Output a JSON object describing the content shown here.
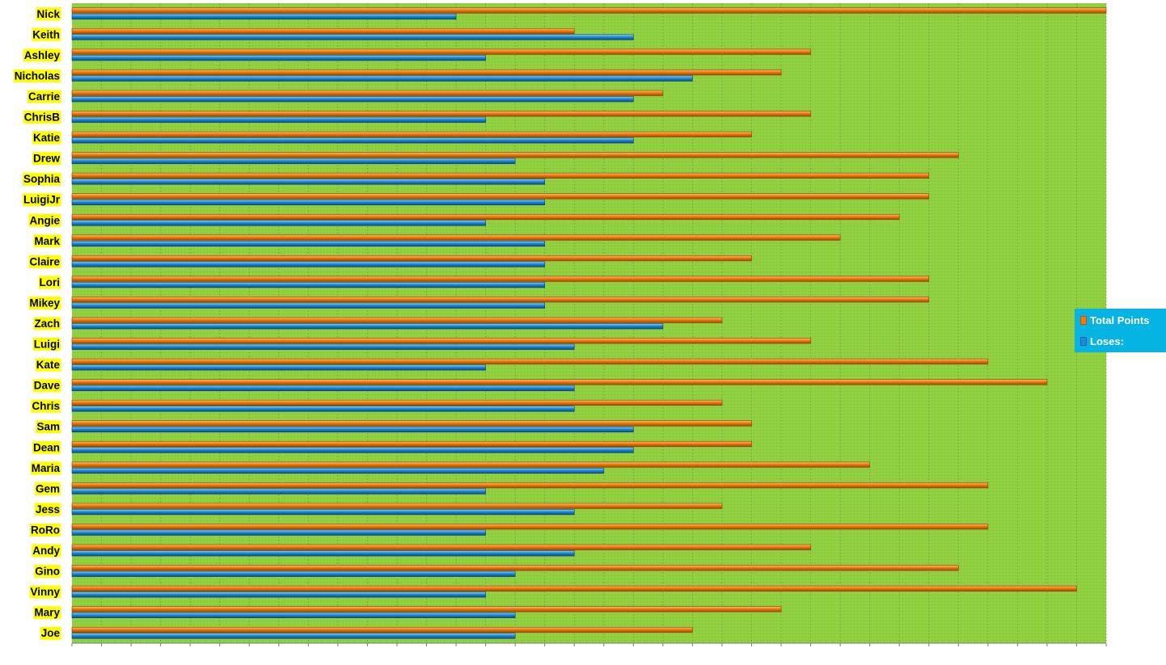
{
  "chart_data": {
    "type": "bar",
    "orientation": "horizontal",
    "categories": [
      "Nick",
      "Keith",
      "Ashley",
      "Nicholas",
      "Carrie",
      "ChrisB",
      "Katie",
      "Drew",
      "Sophia",
      "LuigiJr",
      "Angie",
      "Mark",
      "Claire",
      "Lori",
      "Mikey",
      "Zach",
      "Luigi",
      "Kate",
      "Dave",
      "Chris",
      "Sam",
      "Dean",
      "Maria",
      "Gem",
      "Jess",
      "RoRo",
      "Andy",
      "Gino",
      "Vinny",
      "Mary",
      "Joe"
    ],
    "series": [
      {
        "name": "Total Points",
        "color": "#f07a10",
        "values": [
          35,
          17,
          25,
          24,
          20,
          25,
          23,
          30,
          29,
          29,
          28,
          26,
          23,
          29,
          29,
          22,
          25,
          31,
          33,
          22,
          23,
          23,
          27,
          31,
          22,
          31,
          25,
          30,
          34,
          24,
          21
        ]
      },
      {
        "name": "Loses:",
        "color": "#1f8bd8",
        "values": [
          13,
          19,
          14,
          21,
          19,
          14,
          19,
          15,
          16,
          16,
          14,
          16,
          16,
          16,
          16,
          20,
          17,
          14,
          17,
          17,
          19,
          19,
          18,
          14,
          17,
          14,
          17,
          15,
          14,
          15,
          15
        ]
      }
    ],
    "xlim": [
      0,
      35
    ],
    "grid": true,
    "legend_position": "right",
    "plot_background": "#8fcf40",
    "label_highlight": "#ffff00"
  },
  "legend": {
    "total_points": "Total Points",
    "loses": "Loses:"
  }
}
